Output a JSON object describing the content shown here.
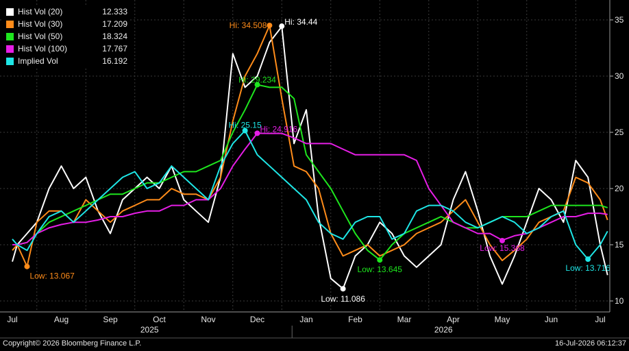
{
  "chart_data": {
    "type": "line",
    "ylim": [
      9.5,
      36
    ],
    "yticks": [
      10,
      15,
      20,
      25,
      30,
      35
    ],
    "x_months": [
      "Jul",
      "Aug",
      "Sep",
      "Oct",
      "Nov",
      "Dec",
      "Jan",
      "Feb",
      "Mar",
      "Apr",
      "May",
      "Jun",
      "Jul"
    ],
    "x_years": [
      "2025",
      "2026"
    ],
    "legend": [
      {
        "name": "Hist Vol (20)",
        "value": "12.333",
        "color": "#ffffff"
      },
      {
        "name": "Hist Vol (30)",
        "value": "17.209",
        "color": "#ff8c1a"
      },
      {
        "name": "Hist Vol (50)",
        "value": "18.324",
        "color": "#1ee61e"
      },
      {
        "name": "Hist Vol (100)",
        "value": "17.767",
        "color": "#e61ee6"
      },
      {
        "name": "Implied Vol",
        "value": "16.192",
        "color": "#1ee6e6"
      }
    ],
    "series": [
      {
        "name": "Hist Vol (20)",
        "color": "#ffffff",
        "x": [
          0,
          0.1,
          0.3,
          0.5,
          0.75,
          1,
          1.25,
          1.5,
          1.75,
          2,
          2.25,
          2.5,
          2.75,
          3,
          3.25,
          3.5,
          3.75,
          4,
          4.25,
          4.5,
          4.75,
          5,
          5.25,
          5.5,
          5.75,
          6,
          6.25,
          6.5,
          6.75,
          7,
          7.25,
          7.5,
          7.75,
          8,
          8.25,
          8.5,
          8.75,
          9,
          9.25,
          9.5,
          9.75,
          10,
          10.25,
          10.5,
          10.75,
          11,
          11.25,
          11.5,
          11.75,
          12,
          12.15
        ],
        "values": [
          13.5,
          15,
          16,
          17,
          20,
          22,
          20,
          21,
          18,
          16,
          19,
          20,
          21,
          20,
          22,
          19,
          18,
          17,
          21,
          32,
          29,
          30,
          33,
          34.4,
          24,
          27,
          17.5,
          12,
          11.086,
          14,
          15,
          17,
          16,
          14,
          13,
          14,
          15,
          19,
          21.5,
          18,
          14,
          11.5,
          14,
          17,
          20,
          19,
          17,
          22.5,
          21,
          15,
          12.3
        ]
      },
      {
        "name": "Hist Vol (30)",
        "color": "#ff8c1a",
        "x": [
          0,
          0.1,
          0.3,
          0.5,
          0.75,
          1,
          1.25,
          1.5,
          1.75,
          2,
          2.25,
          2.5,
          2.75,
          3,
          3.25,
          3.5,
          3.75,
          4,
          4.25,
          4.5,
          4.75,
          5,
          5.25,
          5.5,
          5.75,
          6,
          6.25,
          6.5,
          6.75,
          7,
          7.25,
          7.5,
          7.75,
          8,
          8.25,
          8.5,
          8.75,
          9,
          9.25,
          9.5,
          9.75,
          10,
          10.25,
          10.5,
          10.75,
          11,
          11.25,
          11.5,
          11.75,
          12,
          12.15
        ],
        "values": [
          14.5,
          15,
          13.067,
          17,
          18,
          18,
          17,
          19,
          18,
          17,
          18,
          18.5,
          19,
          19,
          20,
          19.5,
          19.5,
          19,
          21,
          26,
          30,
          32,
          34.508,
          28,
          22,
          21.5,
          20,
          16,
          14,
          14.5,
          15,
          14,
          14.5,
          15,
          16,
          16.5,
          17,
          18,
          19,
          17,
          15,
          13.6,
          14.5,
          15.5,
          17,
          17.5,
          18,
          21,
          20.5,
          19,
          17.2
        ]
      },
      {
        "name": "Hist Vol (50)",
        "color": "#1ee61e",
        "x": [
          0,
          0.1,
          0.3,
          0.5,
          0.75,
          1,
          1.25,
          1.5,
          1.75,
          2,
          2.25,
          2.5,
          2.75,
          3,
          3.25,
          3.5,
          3.75,
          4,
          4.25,
          4.5,
          4.75,
          5,
          5.25,
          5.5,
          5.75,
          6,
          6.25,
          6.5,
          6.75,
          7,
          7.25,
          7.5,
          7.75,
          8,
          8.25,
          8.5,
          8.75,
          9,
          9.25,
          9.5,
          9.75,
          10,
          10.25,
          10.5,
          10.75,
          11,
          11.25,
          11.5,
          11.75,
          12,
          12.15
        ],
        "values": [
          15,
          15,
          15.2,
          16,
          17,
          17.5,
          18,
          18.5,
          19,
          19.5,
          19.5,
          20,
          20.5,
          20.5,
          21,
          21.5,
          21.5,
          22,
          22.5,
          25,
          27,
          29.234,
          29,
          29,
          28,
          23,
          21.5,
          20,
          18,
          16,
          14.5,
          13.645,
          15,
          16,
          16.5,
          17,
          17.5,
          17,
          16.5,
          16.5,
          17,
          17.5,
          17.5,
          17.5,
          18,
          18.5,
          18.5,
          18.5,
          18.5,
          18.5,
          18.3
        ]
      },
      {
        "name": "Hist Vol (100)",
        "color": "#e61ee6",
        "x": [
          0,
          0.1,
          0.3,
          0.5,
          0.75,
          1,
          1.25,
          1.5,
          1.75,
          2,
          2.25,
          2.5,
          2.75,
          3,
          3.25,
          3.5,
          3.75,
          4,
          4.25,
          4.5,
          4.75,
          5,
          5.25,
          5.5,
          5.75,
          6,
          6.25,
          6.5,
          6.75,
          7,
          7.25,
          7.5,
          7.75,
          8,
          8.25,
          8.5,
          8.75,
          9,
          9.25,
          9.5,
          9.75,
          10,
          10.25,
          10.5,
          10.75,
          11,
          11.25,
          11.5,
          11.75,
          12,
          12.15
        ],
        "values": [
          15,
          15,
          15.2,
          16,
          16.5,
          16.8,
          17,
          17,
          17.2,
          17.5,
          17.5,
          17.8,
          18,
          18,
          18.5,
          18.5,
          19,
          19,
          20,
          22,
          23.5,
          24.916,
          24.9,
          24.9,
          24.5,
          24,
          24,
          24,
          23.5,
          23,
          23,
          23,
          23,
          23,
          22.5,
          20,
          18.5,
          17,
          16.5,
          16,
          16,
          15.4,
          15.8,
          16,
          16.5,
          17,
          17.5,
          17.5,
          17.8,
          17.8,
          17.7
        ]
      },
      {
        "name": "Implied Vol",
        "color": "#1ee6e6",
        "x": [
          0,
          0.1,
          0.3,
          0.5,
          0.75,
          1,
          1.25,
          1.5,
          1.75,
          2,
          2.25,
          2.5,
          2.75,
          3,
          3.25,
          3.5,
          3.75,
          4,
          4.25,
          4.5,
          4.75,
          5,
          5.25,
          5.5,
          5.75,
          6,
          6.25,
          6.5,
          6.75,
          7,
          7.25,
          7.5,
          7.75,
          8,
          8.25,
          8.5,
          8.75,
          9,
          9.25,
          9.5,
          9.75,
          10,
          10.25,
          10.5,
          10.75,
          11,
          11.25,
          11.5,
          11.75,
          12,
          12.15
        ],
        "values": [
          15.5,
          15,
          14.5,
          16,
          17.5,
          18,
          17,
          18,
          19,
          20,
          21,
          21.5,
          20,
          20.5,
          22,
          21,
          20,
          19,
          22,
          24,
          25.15,
          23,
          22,
          21,
          20,
          19,
          17,
          16,
          15.5,
          17,
          17.5,
          17.5,
          15.5,
          16,
          18,
          18.5,
          18.5,
          18,
          17,
          16.5,
          17,
          17.5,
          17,
          16,
          16.5,
          17.5,
          18,
          15,
          13.716,
          15,
          16.2
        ]
      }
    ],
    "annotations": [
      {
        "series": 0,
        "text": "Hi: 34.44",
        "x": 5.5,
        "y": 34.44,
        "align": "left",
        "dy": -6
      },
      {
        "series": 1,
        "text": "Hi: 34.508",
        "x": 5.25,
        "y": 34.508,
        "align": "right",
        "dy": 0
      },
      {
        "series": 2,
        "text": "Hi: 29.234",
        "x": 5.0,
        "y": 29.234,
        "align": "center",
        "dy": -7
      },
      {
        "series": 4,
        "text": "Hi: 25.15",
        "x": 4.75,
        "y": 25.15,
        "align": "center",
        "dy": -8
      },
      {
        "series": 3,
        "text": "Hi: 24.916",
        "x": 5.0,
        "y": 24.916,
        "align": "left",
        "dy": -6
      },
      {
        "series": 0,
        "text": "Low: 11.086",
        "x": 6.75,
        "y": 11.086,
        "align": "center",
        "dy": 15
      },
      {
        "series": 1,
        "text": "Low: 13.067",
        "x": 0.3,
        "y": 13.067,
        "align": "left",
        "dy": 14
      },
      {
        "series": 2,
        "text": "Low: 13.645",
        "x": 7.5,
        "y": 13.645,
        "align": "center",
        "dy": 14
      },
      {
        "series": 3,
        "text": "Low: 15.368",
        "x": 10.0,
        "y": 15.368,
        "align": "center",
        "dy": 11
      },
      {
        "series": 4,
        "text": "Low: 13.716",
        "x": 11.75,
        "y": 13.716,
        "align": "center",
        "dy": 13
      }
    ]
  },
  "footer": {
    "copyright": "Copyright© 2026 Bloomberg Finance L.P.",
    "timestamp": "16-Jul-2026 06:12:37"
  }
}
